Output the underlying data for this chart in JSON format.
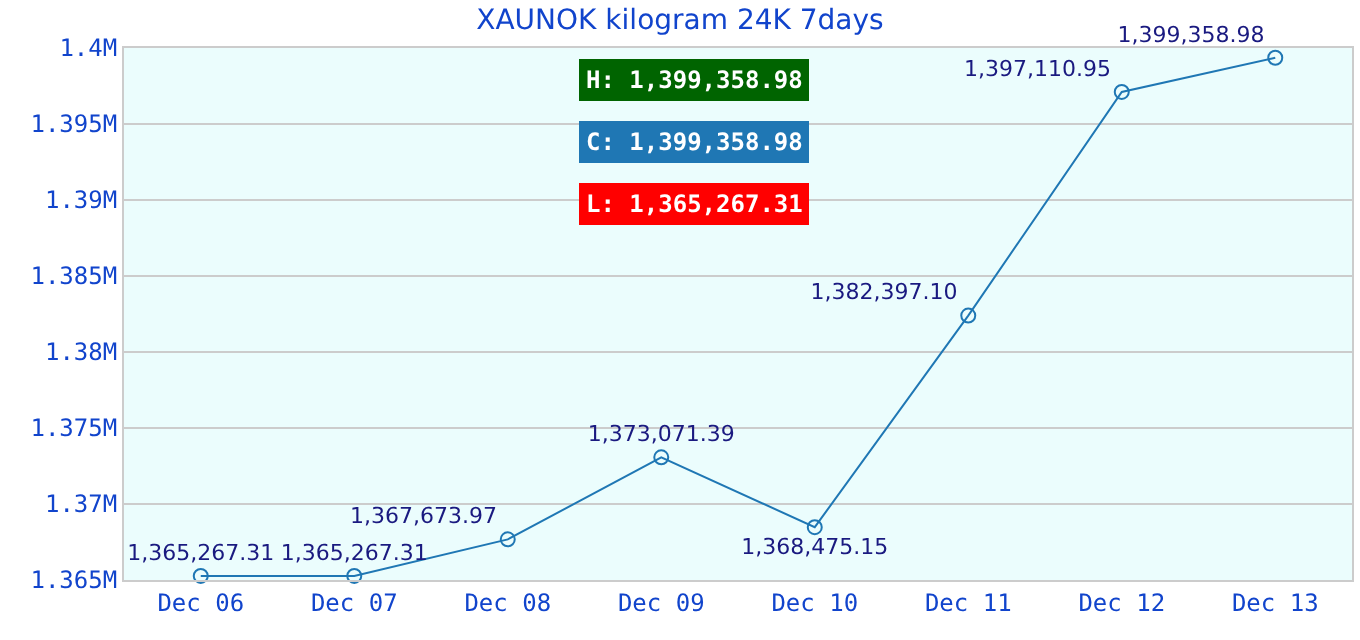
{
  "chart_data": {
    "type": "line",
    "title": "XAUNOK kilogram 24K 7days",
    "categories": [
      "Dec 06",
      "Dec 07",
      "Dec 08",
      "Dec 09",
      "Dec 10",
      "Dec 11",
      "Dec 12",
      "Dec 13"
    ],
    "series": [
      {
        "color": "#1f77b4",
        "values": [
          1365267.31,
          1365267.31,
          1367673.97,
          1373071.39,
          1368475.15,
          1382397.1,
          1397110.95,
          1399358.98
        ],
        "value_labels": [
          "1,365,267.31",
          "1,365,267.31",
          "1,367,673.97",
          "1,373,071.39",
          "1,368,475.15",
          "1,382,397.10",
          "1,397,110.95",
          "1,399,358.98"
        ]
      }
    ],
    "ylim": [
      1365000,
      1400000
    ],
    "yticks": [
      {
        "value": 1365000,
        "label": "1.365M"
      },
      {
        "value": 1370000,
        "label": "1.37M"
      },
      {
        "value": 1375000,
        "label": "1.375M"
      },
      {
        "value": 1380000,
        "label": "1.38M"
      },
      {
        "value": 1385000,
        "label": "1.385M"
      },
      {
        "value": 1390000,
        "label": "1.39M"
      },
      {
        "value": 1395000,
        "label": "1.395M"
      },
      {
        "value": 1400000,
        "label": "1.4M"
      }
    ],
    "grid": "y",
    "marker": "circle",
    "line_style": "solid",
    "annotations": [
      "H: 1,399,358.98",
      "C: 1,399,358.98",
      "L: 1,365,267.31"
    ]
  }
}
